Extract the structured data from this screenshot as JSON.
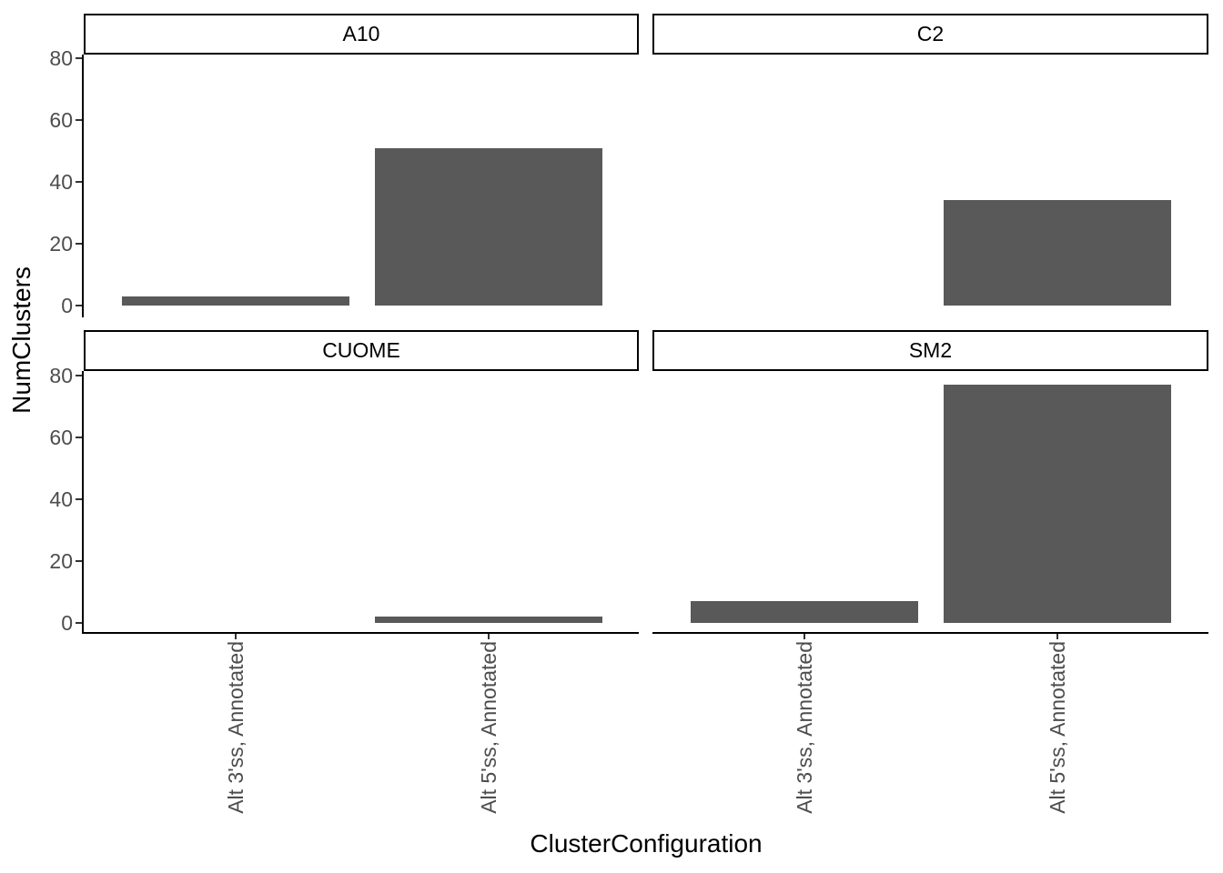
{
  "chart_data": {
    "type": "bar",
    "title": "",
    "xlabel": "ClusterConfiguration",
    "ylabel": "NumClusters",
    "categories": [
      "Alt 3'ss, Annotated",
      "Alt 5'ss, Annotated"
    ],
    "facets": [
      {
        "name": "A10",
        "values": [
          3,
          51
        ]
      },
      {
        "name": "C2",
        "values": [
          0,
          34
        ]
      },
      {
        "name": "CUOME",
        "values": [
          0,
          2
        ]
      },
      {
        "name": "SM2",
        "values": [
          7,
          77
        ]
      }
    ],
    "y_ticks": [
      0,
      20,
      40,
      60,
      80
    ],
    "ylim": [
      0,
      80.85
    ],
    "grid": false,
    "legend": false,
    "colors": {
      "bar_fill": "#595959",
      "axis_text": "#4d4d4d",
      "axis_line": "#000000",
      "tick_mark": "#333333",
      "strip_border": "#000000",
      "strip_fill": "#ffffff",
      "strip_text": "#000000",
      "title_text": "#000000",
      "background": "#ffffff"
    }
  }
}
